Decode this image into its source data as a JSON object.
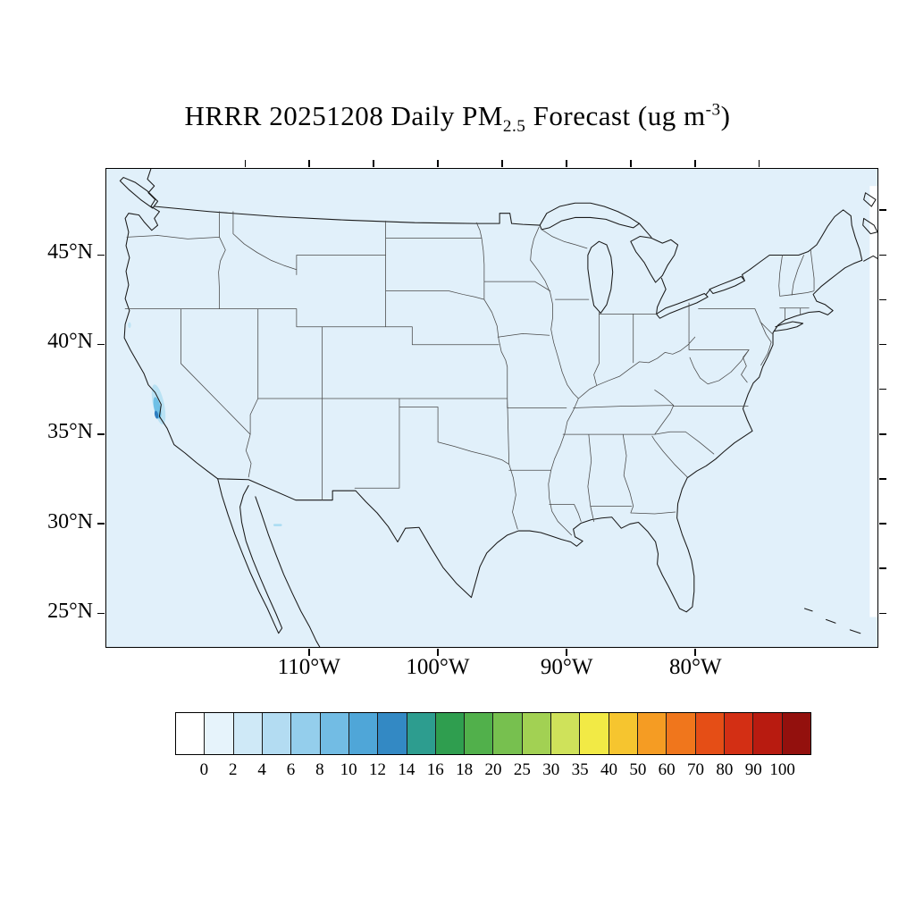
{
  "title": {
    "text_main": "HRRR 20251208 Daily PM",
    "subscript": "2.5",
    "text_mid": " Forecast (ug m",
    "superscript": "-3",
    "text_end": ")"
  },
  "axes": {
    "lat_labels": [
      "45°N",
      "40°N",
      "35°N",
      "30°N",
      "25°N"
    ],
    "lon_labels": [
      "110°W",
      "100°W",
      "90°W",
      "80°W"
    ]
  },
  "colorbar": {
    "tick_labels": [
      "0",
      "2",
      "4",
      "6",
      "8",
      "10",
      "12",
      "14",
      "16",
      "18",
      "20",
      "25",
      "30",
      "35",
      "40",
      "50",
      "60",
      "70",
      "80",
      "90",
      "100"
    ],
    "segment_colors": [
      "#ffffff",
      "#e6f3fb",
      "#cfe9f7",
      "#b3dcf2",
      "#94ceec",
      "#72bce4",
      "#4fa6d8",
      "#3389c4",
      "#2d9d8f",
      "#2f9e4f",
      "#51b04b",
      "#77c04f",
      "#a2d153",
      "#cfe25a",
      "#f2ea45",
      "#f6c52f",
      "#f59c23",
      "#f0761c",
      "#e54e16",
      "#d32f14",
      "#b81b10",
      "#93100d"
    ]
  },
  "map": {
    "background_color": "#e1f0fa"
  },
  "chart_data": {
    "type": "heatmap",
    "title": "HRRR 20251208 Daily PM2.5 Forecast (ug m-3)",
    "model": "HRRR",
    "date": "20251208",
    "units": "ug m-3",
    "colorbar_levels": [
      0,
      2,
      4,
      6,
      8,
      10,
      12,
      14,
      16,
      18,
      20,
      25,
      30,
      35,
      40,
      50,
      60,
      70,
      80,
      90,
      100
    ],
    "lat_ticks_deg_n": [
      45,
      40,
      35,
      30,
      25
    ],
    "lon_ticks_deg_w": [
      110,
      100,
      90,
      80
    ],
    "field_summary": "PM2.5 is ~0-2 ug m-3 over nearly the entire CONUS domain; small patches of ~2-8 ug m-3 appear in California's Central Valley and far northern California, with a trace patch near the southern New Mexico border"
  }
}
